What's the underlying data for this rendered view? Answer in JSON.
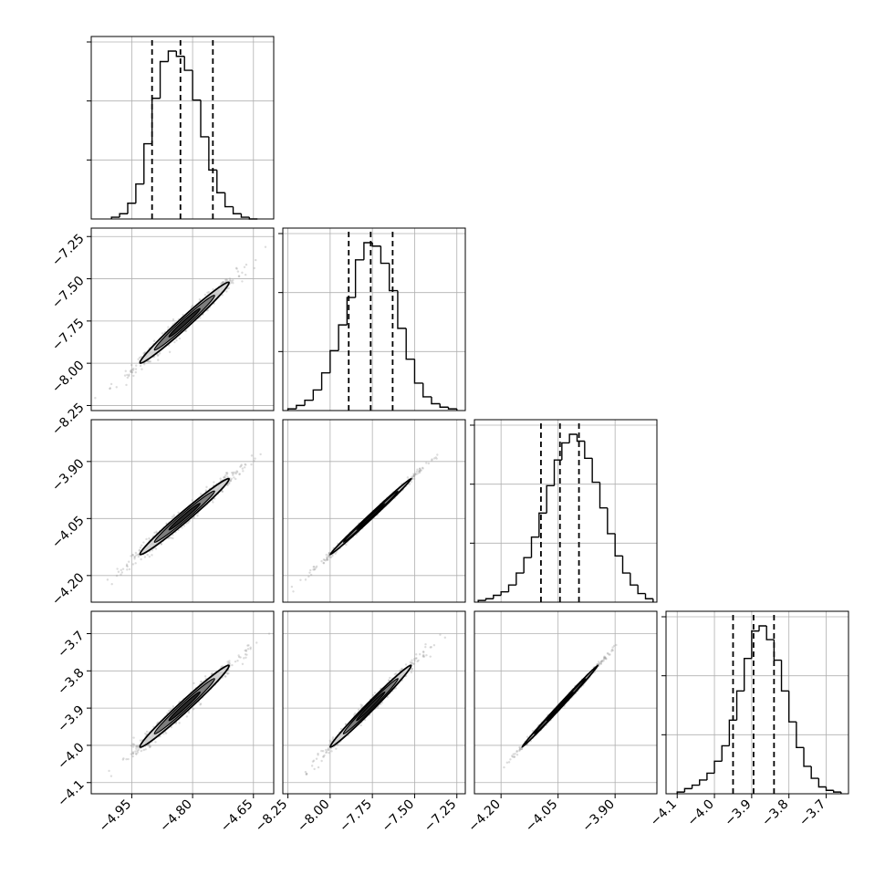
{
  "chart_data": {
    "type": "corner",
    "parameters": 4,
    "colors": {
      "line": "#000000",
      "grid": "#b0b0b0",
      "scatter": "#9a9a9a",
      "fill_inner": "#1a1a1a",
      "fill_mid": "#6e6e6e",
      "fill_outer": "#d0d0d0"
    },
    "grid": true,
    "axes": [
      {
        "range": [
          -5.05,
          -4.6
        ],
        "ticks": [
          -4.95,
          -4.8,
          -4.65
        ],
        "tick_labels": [
          "−4.95",
          "−4.80",
          "−4.65"
        ]
      },
      {
        "range": [
          -8.28,
          -7.2
        ],
        "ticks": [
          -8.25,
          -8.0,
          -7.75,
          -7.5,
          -7.25
        ],
        "tick_labels": [
          "−8.25",
          "−8.00",
          "−7.75",
          "−7.50",
          "−7.25"
        ]
      },
      {
        "range": [
          -4.27,
          -3.79
        ],
        "ticks": [
          -4.2,
          -4.05,
          -3.9
        ],
        "tick_labels": [
          "−4.20",
          "−4.05",
          "−3.90"
        ]
      },
      {
        "range": [
          -4.13,
          -3.64
        ],
        "ticks": [
          -4.1,
          -4.0,
          -3.9,
          -3.8,
          -3.7
        ],
        "tick_labels": [
          "−4.1",
          "−4.0",
          "−3.9",
          "−3.8",
          "−3.7"
        ]
      }
    ],
    "marginals": [
      {
        "param": 0,
        "quantiles": [
          -4.9,
          -4.83,
          -4.75
        ],
        "bin_edges": [
          -5.0,
          -4.98,
          -4.96,
          -4.94,
          -4.92,
          -4.9,
          -4.88,
          -4.86,
          -4.84,
          -4.82,
          -4.8,
          -4.78,
          -4.76,
          -4.74,
          -4.72,
          -4.7,
          -4.68,
          -4.66,
          -4.64
        ],
        "counts": [
          1,
          3,
          9,
          20,
          43,
          69,
          90,
          96,
          93,
          85,
          68,
          47,
          28,
          15,
          7,
          3,
          1,
          0
        ]
      },
      {
        "param": 1,
        "quantiles": [
          -7.89,
          -7.76,
          -7.63
        ],
        "bin_edges": [
          -8.25,
          -8.2,
          -8.15,
          -8.1,
          -8.05,
          -8.0,
          -7.95,
          -7.9,
          -7.85,
          -7.8,
          -7.75,
          -7.7,
          -7.65,
          -7.6,
          -7.55,
          -7.5,
          -7.45,
          -7.4,
          -7.35,
          -7.3,
          -7.25
        ],
        "counts": [
          1,
          3,
          6,
          12,
          22,
          35,
          50,
          66,
          88,
          98,
          96,
          86,
          70,
          48,
          30,
          16,
          8,
          4,
          2,
          1
        ]
      },
      {
        "param": 2,
        "quantiles": [
          -4.095,
          -4.045,
          -3.995
        ],
        "bin_edges": [
          -4.26,
          -4.24,
          -4.22,
          -4.2,
          -4.18,
          -4.16,
          -4.14,
          -4.12,
          -4.1,
          -4.08,
          -4.06,
          -4.04,
          -4.02,
          -4.0,
          -3.98,
          -3.96,
          -3.94,
          -3.92,
          -3.9,
          -3.88,
          -3.86,
          -3.84,
          -3.82,
          -3.8
        ],
        "counts": [
          1,
          2,
          4,
          6,
          10,
          17,
          26,
          38,
          52,
          68,
          83,
          93,
          98,
          94,
          84,
          70,
          55,
          40,
          27,
          17,
          10,
          5,
          2
        ]
      },
      {
        "param": 3,
        "quantiles": [
          -3.95,
          -3.895,
          -3.84
        ],
        "bin_edges": [
          -4.1,
          -4.08,
          -4.06,
          -4.04,
          -4.02,
          -4.0,
          -3.98,
          -3.96,
          -3.94,
          -3.92,
          -3.9,
          -3.88,
          -3.86,
          -3.84,
          -3.82,
          -3.8,
          -3.78,
          -3.76,
          -3.74,
          -3.72,
          -3.7,
          -3.68,
          -3.66
        ],
        "counts": [
          1,
          3,
          5,
          8,
          12,
          19,
          28,
          43,
          60,
          79,
          95,
          98,
          90,
          78,
          60,
          42,
          27,
          16,
          9,
          4,
          2,
          1
        ]
      }
    ],
    "correlations": [
      {
        "x": 0,
        "y": 1,
        "mean": [
          -4.82,
          -7.76
        ],
        "sd": [
          0.055,
          0.12
        ],
        "rho": 0.985
      },
      {
        "x": 0,
        "y": 2,
        "mean": [
          -4.82,
          -4.045
        ],
        "sd": [
          0.055,
          0.05
        ],
        "rho": 0.985
      },
      {
        "x": 1,
        "y": 2,
        "mean": [
          -7.76,
          -4.045
        ],
        "sd": [
          0.12,
          0.05
        ],
        "rho": 0.997
      },
      {
        "x": 0,
        "y": 3,
        "mean": [
          -4.82,
          -3.895
        ],
        "sd": [
          0.055,
          0.055
        ],
        "rho": 0.985
      },
      {
        "x": 1,
        "y": 3,
        "mean": [
          -7.76,
          -3.895
        ],
        "sd": [
          0.12,
          0.055
        ],
        "rho": 0.99
      },
      {
        "x": 2,
        "y": 3,
        "mean": [
          -4.045,
          -3.895
        ],
        "sd": [
          0.05,
          0.055
        ],
        "rho": 0.998
      }
    ]
  }
}
